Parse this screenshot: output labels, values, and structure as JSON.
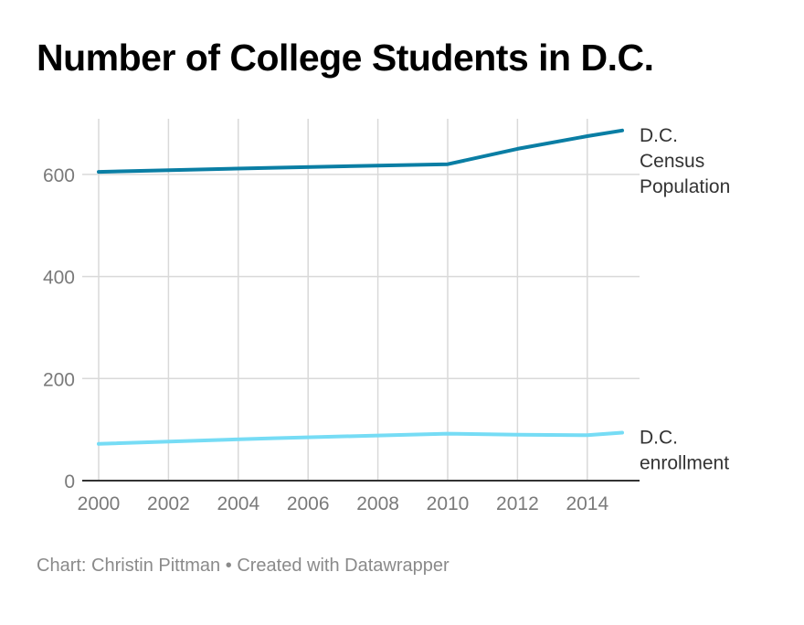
{
  "title": "Number of College Students in D.C.",
  "footer": {
    "credit": "Chart: Christin Pittman",
    "separator": "•",
    "tool": "Created with Datawrapper"
  },
  "chart_data": {
    "type": "line",
    "title": "Number of College Students in D.C.",
    "xlabel": "",
    "ylabel": "",
    "x": [
      2000,
      2005,
      2010,
      2012,
      2014,
      2015
    ],
    "xlim": [
      2000,
      2015
    ],
    "ylim": [
      0,
      700
    ],
    "x_ticks": [
      "2000",
      "2002",
      "2004",
      "2006",
      "2008",
      "2010",
      "2012",
      "2014"
    ],
    "y_ticks": [
      "0",
      "200",
      "400",
      "600"
    ],
    "grid": true,
    "legend": "inline-right",
    "series": [
      {
        "name_lines": [
          "D.C.",
          "Census",
          "Population"
        ],
        "color": "#0a7ea4",
        "points": [
          [
            2000,
            605
          ],
          [
            2005,
            613
          ],
          [
            2010,
            620
          ],
          [
            2012,
            650
          ],
          [
            2014,
            675
          ],
          [
            2015,
            686
          ]
        ]
      },
      {
        "name_lines": [
          "D.C.",
          "enrollment"
        ],
        "color": "#76dcf5",
        "points": [
          [
            2000,
            72
          ],
          [
            2005,
            83
          ],
          [
            2010,
            92
          ],
          [
            2012,
            90
          ],
          [
            2014,
            89
          ],
          [
            2015,
            94
          ]
        ]
      }
    ]
  }
}
